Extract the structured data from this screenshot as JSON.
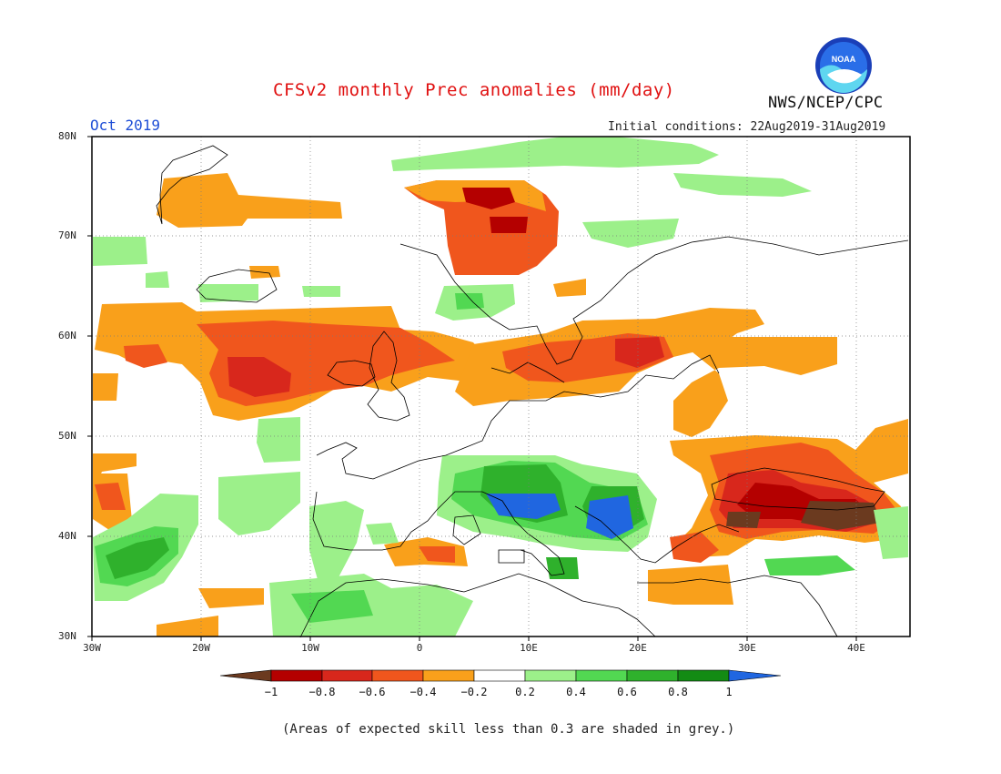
{
  "header": {
    "title": "CFSv2 monthly Prec anomalies (mm/day)",
    "month": "Oct 2019",
    "initial_conditions": "Initial conditions: 22Aug2019-31Aug2019",
    "agency": "NWS/NCEP/CPC",
    "logo_text": "NOAA"
  },
  "map": {
    "region": "Europe / North Atlantic / Mediterranean",
    "lon_range": [
      -30,
      45
    ],
    "lat_range": [
      30,
      80
    ],
    "lat_labels": [
      "80N",
      "70N",
      "60N",
      "50N",
      "40N",
      "30N"
    ],
    "lon_labels": [
      "30W",
      "20W",
      "10W",
      "0",
      "10E",
      "20E",
      "30E",
      "40E"
    ],
    "anomaly_zones": [
      {
        "label": "Barents/Norwegian Sea drying",
        "level": -0.7
      },
      {
        "label": "North Atlantic drying",
        "level": -0.6
      },
      {
        "label": "Scandinavia/Baltic drying",
        "level": -0.5
      },
      {
        "label": "Black Sea / Anatolia drying",
        "level": -0.9
      },
      {
        "label": "Italy/Balkans wet",
        "level": 0.9
      },
      {
        "label": "Azores region wet",
        "level": 0.7
      },
      {
        "label": "Iberia/NW Africa wet",
        "level": 0.3
      }
    ]
  },
  "colorbar": {
    "ticks": [
      "−1",
      "−0.8",
      "−0.6",
      "−0.4",
      "−0.2",
      "0.2",
      "0.4",
      "0.6",
      "0.8",
      "1"
    ],
    "colors": [
      "#6b3a1f",
      "#b40000",
      "#d8271c",
      "#f0561d",
      "#f9a01b",
      "#ffffff",
      "#9cf08a",
      "#52d852",
      "#2fb12c",
      "#138b14",
      "#2066e0"
    ]
  },
  "footnote": "(Areas of expected skill less than 0.3 are shaded in grey.)"
}
